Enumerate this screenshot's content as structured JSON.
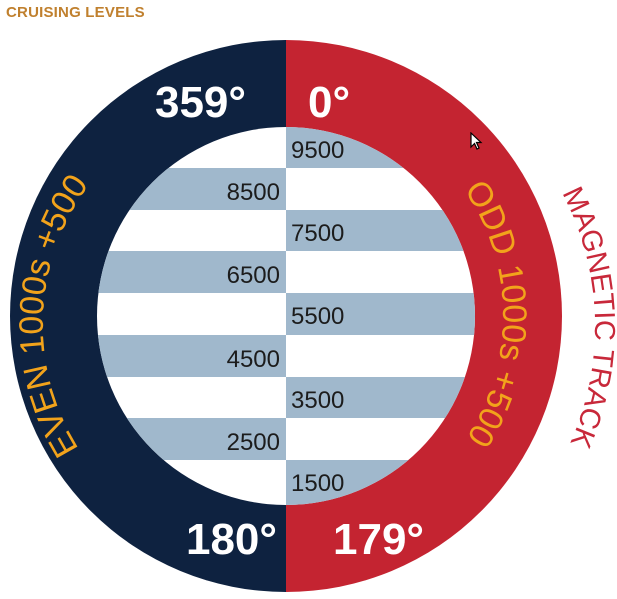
{
  "title": "CRUISING LEVELS",
  "colors": {
    "even_side": "#0e2240",
    "odd_side": "#c42431",
    "stripe": "#a0b8cc",
    "gold_text": "#f2a31b",
    "title": "#c0802e"
  },
  "degrees": {
    "top_left": "359°",
    "top_right": "0°",
    "bottom_left": "180°",
    "bottom_right": "179°"
  },
  "arc_labels": {
    "even": "EVEN 1000s +500",
    "odd": "ODD 1000s +500",
    "outer": "MAGNETIC TRACK"
  },
  "levels": {
    "odd": [
      "9500",
      "7500",
      "5500",
      "3500",
      "1500"
    ],
    "even": [
      "8500",
      "6500",
      "4500",
      "2500"
    ]
  },
  "icons": {
    "cursor": "mouse-pointer-icon"
  }
}
